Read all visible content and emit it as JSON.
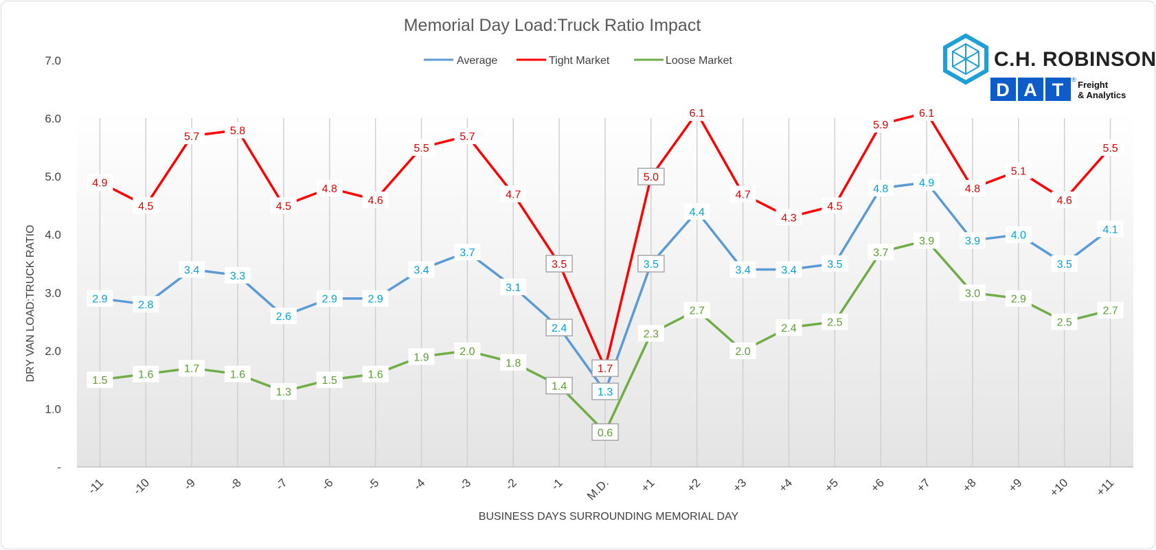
{
  "chart_data": {
    "type": "line",
    "title": "Memorial Day Load:Truck Ratio Impact",
    "xlabel": "BUSINESS DAYS SURROUNDING MEMORIAL DAY",
    "ylabel": "DRY VAN LOAD:TRUCK RATIO",
    "categories": [
      "-11",
      "-10",
      "-9",
      "-8",
      "-7",
      "-6",
      "-5",
      "-4",
      "-3",
      "-2",
      "-1",
      "M.D.",
      "+1",
      "+2",
      "+3",
      "+4",
      "+5",
      "+6",
      "+7",
      "+8",
      "+9",
      "+10",
      "+11"
    ],
    "ylim": [
      0,
      7
    ],
    "yticks": [
      "-",
      "1.0",
      "2.0",
      "3.0",
      "4.0",
      "5.0",
      "6.0",
      "7.0"
    ],
    "grid": "vertical",
    "legend_position": "top",
    "series": [
      {
        "name": "Average",
        "color": "#5b9bd5",
        "label_color": "#00a3d9",
        "values": [
          2.9,
          2.8,
          3.4,
          3.3,
          2.6,
          2.9,
          2.9,
          3.4,
          3.7,
          3.1,
          2.4,
          1.3,
          3.5,
          4.4,
          3.4,
          3.4,
          3.5,
          4.8,
          4.9,
          3.9,
          4.0,
          3.5,
          4.1
        ],
        "labels": [
          "2.9",
          "2.8",
          "3.4",
          "3.3",
          "2.6",
          "2.9",
          "2.9",
          "3.4",
          "3.7",
          "3.1",
          "2.4",
          "1.3",
          "3.5",
          "4.4",
          "3.4",
          "3.4",
          "3.5",
          "4.8",
          "4.9",
          "3.9",
          "4.0",
          "3.5",
          "4.1"
        ]
      },
      {
        "name": "Tight Market",
        "color": "#ff0000",
        "label_color": "#e00000",
        "values": [
          4.9,
          4.5,
          5.7,
          5.8,
          4.5,
          4.8,
          4.6,
          5.5,
          5.7,
          4.7,
          3.5,
          1.7,
          5.0,
          6.1,
          4.7,
          4.3,
          4.5,
          5.9,
          6.1,
          4.8,
          5.1,
          4.6,
          5.5
        ],
        "labels": [
          "4.9",
          "4.5",
          "5.7",
          "5.8",
          "4.5",
          "4.8",
          "4.6",
          "5.5",
          "5.7",
          "4.7",
          "3.5",
          "1.7",
          "5.0",
          "6.1",
          "4.7",
          "4.3",
          "4.5",
          "5.9",
          "6.1",
          "4.8",
          "5.1",
          "4.6",
          "5.5"
        ]
      },
      {
        "name": "Loose Market",
        "color": "#70ad47",
        "label_color": "#5b9e32",
        "values": [
          1.5,
          1.6,
          1.7,
          1.6,
          1.3,
          1.5,
          1.6,
          1.9,
          2.0,
          1.8,
          1.4,
          0.6,
          2.3,
          2.7,
          2.0,
          2.4,
          2.5,
          3.7,
          3.9,
          3.0,
          2.9,
          2.5,
          2.7
        ],
        "labels": [
          "1.5",
          "1.6",
          "1.7",
          "1.6",
          "1.3",
          "1.5",
          "1.6",
          "1.9",
          "2.0",
          "1.8",
          "1.4",
          "0.6",
          "2.3",
          "2.7",
          "2.0",
          "2.4",
          "2.5",
          "3.7",
          "3.9",
          "3.0",
          "2.9",
          "2.5",
          "2.7"
        ]
      }
    ],
    "boxed_points": [
      {
        "series": 1,
        "index": 10
      },
      {
        "series": 1,
        "index": 11
      },
      {
        "series": 1,
        "index": 12
      },
      {
        "series": 0,
        "index": 10
      },
      {
        "series": 0,
        "index": 11
      },
      {
        "series": 0,
        "index": 12
      },
      {
        "series": 2,
        "index": 10
      },
      {
        "series": 2,
        "index": 11
      }
    ]
  },
  "logos": {
    "chr_name": "C.H. ROBINSON",
    "dat_letters": "DAT",
    "dat_registered": "®",
    "dat_tag_line1": "Freight",
    "dat_tag_line2": "& Analytics",
    "chr_color": "#1d9fd8",
    "dat_color": "#0d5cc9"
  }
}
